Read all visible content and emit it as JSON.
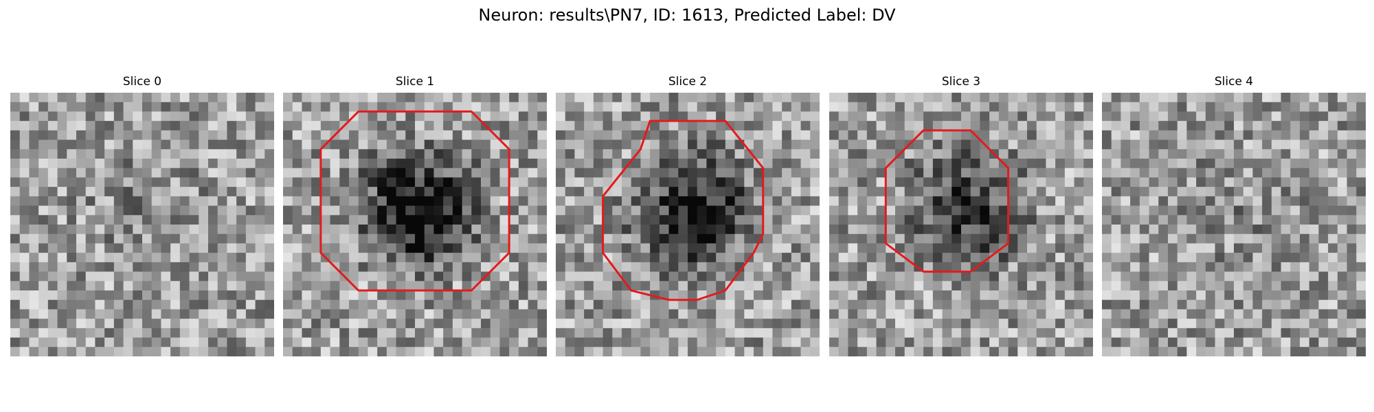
{
  "figure": {
    "title": "Neuron: results\\PN7, ID: 1613, Predicted Label: DV"
  },
  "panels": [
    {
      "title": "Slice 0",
      "has_contour": false,
      "dark_blob": 0.15,
      "contour": []
    },
    {
      "title": "Slice 1",
      "has_contour": true,
      "dark_blob": 1.0,
      "contour": [
        [
          8,
          2
        ],
        [
          20,
          2
        ],
        [
          24,
          6
        ],
        [
          24,
          17
        ],
        [
          20,
          21
        ],
        [
          8,
          21
        ],
        [
          4,
          17
        ],
        [
          4,
          6
        ]
      ]
    },
    {
      "title": "Slice 2",
      "has_contour": true,
      "dark_blob": 0.9,
      "contour": [
        [
          10,
          3
        ],
        [
          18,
          3
        ],
        [
          22,
          8
        ],
        [
          22,
          15
        ],
        [
          21,
          17
        ],
        [
          18,
          21
        ],
        [
          15,
          22
        ],
        [
          12,
          22
        ],
        [
          8,
          21
        ],
        [
          5,
          17
        ],
        [
          5,
          11
        ],
        [
          9,
          6
        ]
      ]
    },
    {
      "title": "Slice 3",
      "has_contour": true,
      "dark_blob": 0.7,
      "contour": [
        [
          10,
          4
        ],
        [
          15,
          4
        ],
        [
          19,
          8
        ],
        [
          19,
          16
        ],
        [
          15,
          19
        ],
        [
          10,
          19
        ],
        [
          6,
          16
        ],
        [
          6,
          8
        ]
      ]
    },
    {
      "title": "Slice 4",
      "has_contour": false,
      "dark_blob": 0.1,
      "contour": []
    }
  ],
  "colors": {
    "contour": "#e41a1c",
    "background": "#ffffff"
  }
}
